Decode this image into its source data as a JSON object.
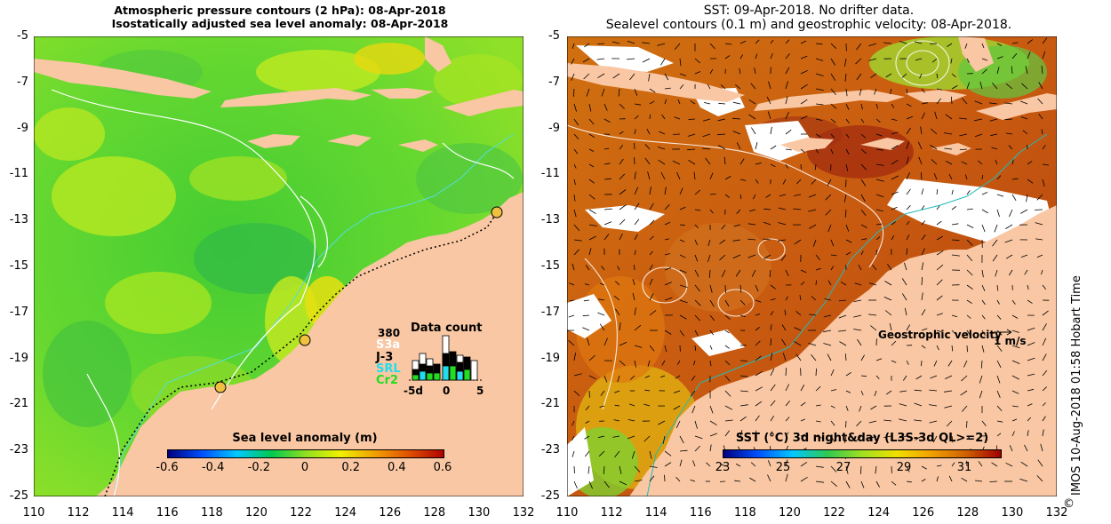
{
  "left_panel": {
    "title_line1": "Atmospheric pressure contours (2 hPa): 08-Apr-2018",
    "title_line2": "Isostatically adjusted sea level anomaly: 08-Apr-2018",
    "y_ticks": [
      "-5",
      "-7",
      "-9",
      "-11",
      "-13",
      "-15",
      "-17",
      "-19",
      "-21",
      "-23",
      "-25"
    ],
    "x_ticks": [
      "110",
      "112",
      "114",
      "116",
      "118",
      "120",
      "122",
      "124",
      "126",
      "128",
      "130",
      "132"
    ],
    "colorbar": {
      "title": "Sea level anomaly (m)",
      "ticks": [
        "-0.6",
        "-0.4",
        "-0.2",
        "0",
        "0.2",
        "0.4",
        "0.6"
      ]
    },
    "data_count": {
      "title": "Data count",
      "max_label": "380",
      "missions": [
        {
          "label": "S3a",
          "color": "#ffffff"
        },
        {
          "label": "J-3",
          "color": "#000000"
        },
        {
          "label": "SRL",
          "color": "#22ddee"
        },
        {
          "label": "Cr2",
          "color": "#22dd22"
        }
      ],
      "x_ticks": [
        "-5d",
        "0",
        "5"
      ]
    }
  },
  "right_panel": {
    "title_line1": "SST: 09-Apr-2018. No drifter data.",
    "title_line2": "Sealevel contours (0.1 m) and geostrophic velocity: 08-Apr-2018.",
    "y_ticks": [
      "-5",
      "-7",
      "-9",
      "-11",
      "-13",
      "-15",
      "-17",
      "-19",
      "-21",
      "-23",
      "-25"
    ],
    "x_ticks": [
      "110",
      "112",
      "114",
      "116",
      "118",
      "120",
      "122",
      "124",
      "126",
      "128",
      "130",
      "132"
    ],
    "velocity_legend": {
      "label": "Geostrophic velocity",
      "unit": "1 m/s"
    },
    "colorbar": {
      "title": "SST (°C) 3d night&day (L3S-3d QL>=2)",
      "ticks": [
        "23",
        "25",
        "27",
        "29",
        "31"
      ]
    }
  },
  "credit": {
    "symbol": "©",
    "text": "IMOS 10-Aug-2018 01:58 Hobart Time"
  },
  "colors": {
    "land": "#f9c7a3",
    "sla_colormap": [
      "#000080",
      "#0050ff",
      "#00c8ff",
      "#00c850",
      "#90e020",
      "#f0f000",
      "#f0a000",
      "#e05000",
      "#b00000"
    ],
    "sst_colormap": [
      "#000080",
      "#0050ff",
      "#00c8ff",
      "#30c850",
      "#a0e020",
      "#f0e000",
      "#f0a000",
      "#d06000",
      "#a00000"
    ]
  }
}
